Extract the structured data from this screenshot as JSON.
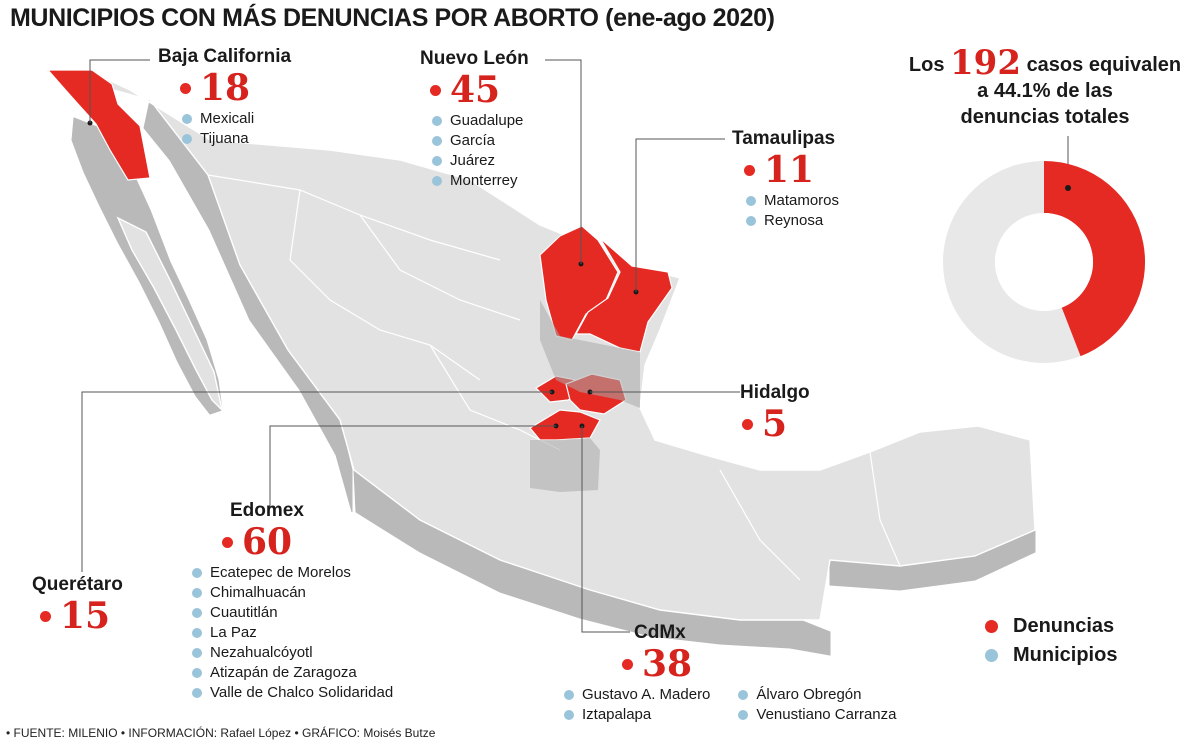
{
  "title": "MUNICIPIOS CON MÁS DENUNCIAS POR ABORTO (ene-ago 2020)",
  "colors": {
    "denuncias": "#e52a24",
    "municipios": "#99c4da",
    "map_gray": "#e0e0e0",
    "donut_rest": "#e8e8e8"
  },
  "states": {
    "baja_california": {
      "name": "Baja California",
      "count": "18",
      "municipios": [
        "Mexicali",
        "Tijuana"
      ]
    },
    "nuevo_leon": {
      "name": "Nuevo León",
      "count": "45",
      "municipios": [
        "Guadalupe",
        "García",
        "Juárez",
        "Monterrey"
      ]
    },
    "tamaulipas": {
      "name": "Tamaulipas",
      "count": "11",
      "municipios": [
        "Matamoros",
        "Reynosa"
      ]
    },
    "hidalgo": {
      "name": "Hidalgo",
      "count": "5"
    },
    "edomex": {
      "name": "Edomex",
      "count": "60",
      "municipios": [
        "Ecatepec de Morelos",
        "Chimalhuacán",
        "Cuautitlán",
        "La Paz",
        "Nezahualcóyotl",
        "Atizapán de Zaragoza",
        "Valle de Chalco Solidaridad"
      ]
    },
    "queretaro": {
      "name": "Querétaro",
      "count": "15"
    },
    "cdmx": {
      "name": "CdMx",
      "count": "38",
      "municipios_col1": [
        "Gustavo A. Madero",
        "Iztapalapa"
      ],
      "municipios_col2": [
        "Álvaro Obregón",
        "Venustiano Carranza"
      ]
    }
  },
  "summary": {
    "prefix": "Los",
    "cases": "192",
    "line1_suffix": "casos equivalen",
    "line2": "a 44.1% de las",
    "line3": "denuncias totales",
    "percent": 44.1
  },
  "legend": {
    "denuncias": "Denuncias",
    "municipios": "Municipios"
  },
  "footer": "• FUENTE: MILENIO • INFORMACIÓN: Rafael López • GRÁFICO: Moisés Butze"
}
